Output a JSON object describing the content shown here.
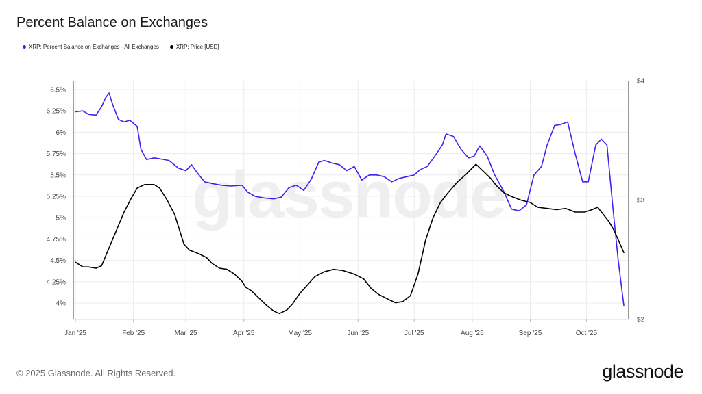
{
  "title": "Percent Balance on Exchanges",
  "legend": [
    {
      "label": "XRP: Percent Balance on Exchanges - All Exchanges",
      "color": "#3b22f5"
    },
    {
      "label": "XRP: Price [USD]",
      "color": "#000000"
    }
  ],
  "watermark": "glassnode",
  "footer": {
    "copyright": "© 2025 Glassnode. All Rights Reserved.",
    "brand": "glassnode"
  },
  "chart_data": {
    "type": "line",
    "x_ticks": [
      "Jan '25",
      "Feb '25",
      "Mar '25",
      "Apr '25",
      "May '25",
      "Jun '25",
      "Jul '25",
      "Aug '25",
      "Sep '25",
      "Oct '25"
    ],
    "x_range": [
      "2025-01-01",
      "2025-10-21"
    ],
    "left_axis": {
      "ticks": [
        "6.5%",
        "6.25%",
        "6%",
        "5.75%",
        "5.5%",
        "5.25%",
        "5%",
        "4.75%",
        "4.5%",
        "4.25%",
        "4%"
      ],
      "ylim": [
        3.9,
        6.6
      ]
    },
    "right_axis": {
      "ticks": [
        "$4",
        "$3",
        "$2"
      ],
      "ylim": [
        2,
        4
      ]
    },
    "grid": true,
    "legend_position": "top-left",
    "series": [
      {
        "name": "XRP: Percent Balance on Exchanges - All Exchanges",
        "axis": "left",
        "color": "#3b22f5",
        "x": [
          "2025-01-01",
          "2025-01-05",
          "2025-01-08",
          "2025-01-12",
          "2025-01-15",
          "2025-01-17",
          "2025-01-19",
          "2025-01-21",
          "2025-01-24",
          "2025-01-27",
          "2025-01-30",
          "2025-02-03",
          "2025-02-05",
          "2025-02-08",
          "2025-02-12",
          "2025-02-15",
          "2025-02-20",
          "2025-02-25",
          "2025-03-01",
          "2025-03-04",
          "2025-03-08",
          "2025-03-11",
          "2025-03-15",
          "2025-03-20",
          "2025-03-25",
          "2025-03-31",
          "2025-04-03",
          "2025-04-07",
          "2025-04-12",
          "2025-04-17",
          "2025-04-21",
          "2025-04-25",
          "2025-04-29",
          "2025-05-03",
          "2025-05-07",
          "2025-05-11",
          "2025-05-14",
          "2025-05-18",
          "2025-05-22",
          "2025-05-26",
          "2025-05-30",
          "2025-06-03",
          "2025-06-07",
          "2025-06-11",
          "2025-06-15",
          "2025-06-19",
          "2025-06-23",
          "2025-06-27",
          "2025-07-01",
          "2025-07-04",
          "2025-07-08",
          "2025-07-12",
          "2025-07-16",
          "2025-07-18",
          "2025-07-22",
          "2025-07-26",
          "2025-07-30",
          "2025-08-02",
          "2025-08-05",
          "2025-08-09",
          "2025-08-13",
          "2025-08-18",
          "2025-08-22",
          "2025-08-26",
          "2025-08-30",
          "2025-09-03",
          "2025-09-07",
          "2025-09-10",
          "2025-09-14",
          "2025-09-17",
          "2025-09-21",
          "2025-09-25",
          "2025-09-29",
          "2025-10-02",
          "2025-10-06",
          "2025-10-09",
          "2025-10-12",
          "2025-10-15",
          "2025-10-18",
          "2025-10-21"
        ],
        "values": [
          6.24,
          6.25,
          6.21,
          6.2,
          6.3,
          6.4,
          6.46,
          6.32,
          6.15,
          6.12,
          6.14,
          6.07,
          5.8,
          5.68,
          5.7,
          5.69,
          5.67,
          5.58,
          5.55,
          5.62,
          5.5,
          5.42,
          5.4,
          5.38,
          5.37,
          5.38,
          5.3,
          5.25,
          5.23,
          5.22,
          5.24,
          5.35,
          5.38,
          5.32,
          5.45,
          5.65,
          5.67,
          5.64,
          5.62,
          5.55,
          5.6,
          5.44,
          5.5,
          5.5,
          5.48,
          5.42,
          5.46,
          5.48,
          5.5,
          5.56,
          5.6,
          5.72,
          5.85,
          5.98,
          5.95,
          5.8,
          5.7,
          5.72,
          5.84,
          5.72,
          5.5,
          5.3,
          5.1,
          5.08,
          5.15,
          5.5,
          5.6,
          5.85,
          6.08,
          6.09,
          6.12,
          5.75,
          5.42,
          5.42,
          5.85,
          5.92,
          5.85,
          5.15,
          4.5,
          3.97
        ]
      },
      {
        "name": "XRP: Price [USD]",
        "axis": "right",
        "color": "#000000",
        "x": [
          "2025-01-01",
          "2025-01-05",
          "2025-01-08",
          "2025-01-12",
          "2025-01-15",
          "2025-01-19",
          "2025-01-23",
          "2025-01-27",
          "2025-01-31",
          "2025-02-03",
          "2025-02-07",
          "2025-02-12",
          "2025-02-15",
          "2025-02-19",
          "2025-02-23",
          "2025-02-28",
          "2025-03-03",
          "2025-03-08",
          "2025-03-12",
          "2025-03-15",
          "2025-03-19",
          "2025-03-23",
          "2025-03-27",
          "2025-03-31",
          "2025-04-02",
          "2025-04-05",
          "2025-04-09",
          "2025-04-13",
          "2025-04-17",
          "2025-04-20",
          "2025-04-24",
          "2025-04-27",
          "2025-05-01",
          "2025-05-05",
          "2025-05-09",
          "2025-05-14",
          "2025-05-19",
          "2025-05-24",
          "2025-05-30",
          "2025-06-04",
          "2025-06-08",
          "2025-06-12",
          "2025-06-17",
          "2025-06-21",
          "2025-06-25",
          "2025-06-29",
          "2025-07-03",
          "2025-07-07",
          "2025-07-11",
          "2025-07-15",
          "2025-07-19",
          "2025-07-24",
          "2025-07-29",
          "2025-08-03",
          "2025-08-07",
          "2025-08-11",
          "2025-08-14",
          "2025-08-18",
          "2025-08-22",
          "2025-08-27",
          "2025-09-01",
          "2025-09-05",
          "2025-09-10",
          "2025-09-15",
          "2025-09-20",
          "2025-09-25",
          "2025-09-30",
          "2025-10-04",
          "2025-10-07",
          "2025-10-10",
          "2025-10-13",
          "2025-10-16",
          "2025-10-21"
        ],
        "values": [
          2.48,
          2.44,
          2.44,
          2.43,
          2.45,
          2.6,
          2.75,
          2.9,
          3.02,
          3.1,
          3.13,
          3.13,
          3.1,
          3.0,
          2.88,
          2.63,
          2.58,
          2.55,
          2.52,
          2.47,
          2.43,
          2.42,
          2.38,
          2.32,
          2.27,
          2.24,
          2.18,
          2.12,
          2.07,
          2.05,
          2.08,
          2.13,
          2.22,
          2.29,
          2.36,
          2.4,
          2.42,
          2.41,
          2.38,
          2.34,
          2.26,
          2.21,
          2.17,
          2.14,
          2.15,
          2.2,
          2.38,
          2.66,
          2.85,
          2.98,
          3.06,
          3.15,
          3.22,
          3.3,
          3.24,
          3.18,
          3.12,
          3.06,
          3.03,
          3.0,
          2.98,
          2.94,
          2.93,
          2.92,
          2.93,
          2.9,
          2.9,
          2.92,
          2.94,
          2.88,
          2.82,
          2.74,
          2.56
        ]
      }
    ]
  }
}
